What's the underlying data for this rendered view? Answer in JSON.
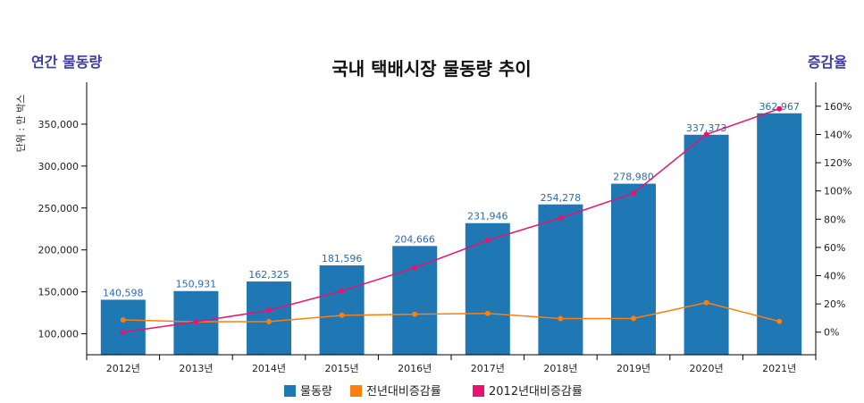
{
  "title": "국내 택배시장 물동량 추이",
  "left_axis_caption": "연간 물동량",
  "right_axis_caption": "증감율",
  "unit_label": "단위 : 만 박스",
  "colors": {
    "volume": "#1f77b4",
    "yoy": "#ff7f0e",
    "since2012": "#e8126f"
  },
  "chart_data": {
    "type": "bar",
    "title": "국내 택배시장 물동량 추이",
    "categories": [
      "2012년",
      "2013년",
      "2014년",
      "2015년",
      "2016년",
      "2017년",
      "2018년",
      "2019년",
      "2020년",
      "2021년"
    ],
    "series": [
      {
        "name": "물동량",
        "type": "bar",
        "axis": "left",
        "values": [
          140598,
          150931,
          162325,
          181596,
          204666,
          231946,
          254278,
          278980,
          337373,
          362967
        ],
        "labels": [
          "140,598",
          "150,931",
          "162,325",
          "181,596",
          "204,666",
          "231,946",
          "254,278",
          "278,980",
          "337,373",
          "362,967"
        ]
      },
      {
        "name": "전년대비증감률",
        "type": "line",
        "axis": "right",
        "values": [
          8.7,
          7.3,
          7.5,
          11.9,
          12.7,
          13.3,
          9.6,
          9.7,
          20.9,
          7.6
        ]
      },
      {
        "name": "2012년대비증감률",
        "type": "line",
        "axis": "right",
        "values": [
          0,
          7.3,
          15.5,
          29.2,
          45.6,
          65.0,
          80.9,
          98.4,
          140.0,
          158.2
        ]
      }
    ],
    "y_left": {
      "ticks": [
        100000,
        150000,
        200000,
        250000,
        300000,
        350000
      ],
      "tick_labels": [
        "100,000",
        "150,000",
        "200,000",
        "250,000",
        "300,000",
        "350,000"
      ],
      "range": [
        75000,
        400000
      ]
    },
    "y_right": {
      "ticks": [
        0,
        20,
        40,
        60,
        80,
        100,
        120,
        140,
        160
      ],
      "tick_labels": [
        "0%",
        "20%",
        "40%",
        "60%",
        "80%",
        "100%",
        "120%",
        "140%",
        "160%"
      ],
      "range": [
        -16,
        177
      ]
    },
    "legend": {
      "position": "bottom",
      "items": [
        "물동량",
        "전년대비증감률",
        "2012년대비증감률"
      ]
    },
    "grid": false
  }
}
